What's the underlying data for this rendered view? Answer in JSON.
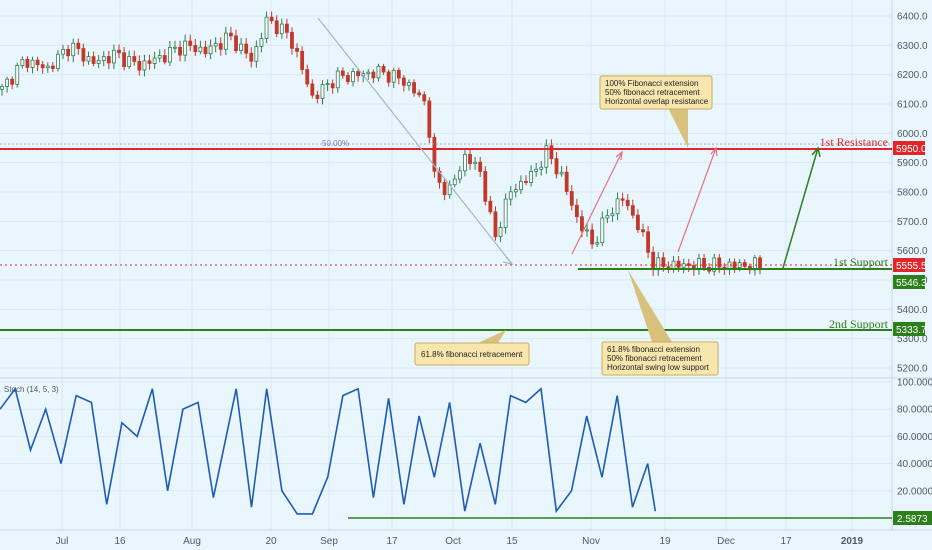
{
  "chart_data": {
    "type": "candlestick",
    "price_axis": {
      "ticks": [
        6400,
        6300,
        6200,
        6100,
        6000,
        5900,
        5800,
        5700,
        5600,
        5500,
        5400,
        5300,
        5200
      ]
    },
    "time_axis": {
      "labels": [
        "Jul",
        "16",
        "Aug",
        "20",
        "Sep",
        "17",
        "Oct",
        "15",
        "Nov",
        "19",
        "Dec",
        "17",
        "2019"
      ]
    },
    "price_path": [
      [
        0,
        6150
      ],
      [
        0.03,
        6250
      ],
      [
        0.06,
        6220
      ],
      [
        0.09,
        6300
      ],
      [
        0.12,
        6240
      ],
      [
        0.15,
        6270
      ],
      [
        0.18,
        6230
      ],
      [
        0.21,
        6260
      ],
      [
        0.24,
        6300
      ],
      [
        0.27,
        6280
      ],
      [
        0.3,
        6330
      ],
      [
        0.33,
        6250
      ],
      [
        0.35,
        6390
      ],
      [
        0.38,
        6330
      ],
      [
        0.41,
        6120
      ],
      [
        0.44,
        6190
      ],
      [
        0.47,
        6200
      ],
      [
        0.5,
        6210
      ],
      [
        0.53,
        6180
      ],
      [
        0.56,
        6100
      ],
      [
        0.57,
        5850
      ],
      [
        0.59,
        5800
      ],
      [
        0.61,
        5920
      ],
      [
        0.63,
        5880
      ],
      [
        0.65,
        5640
      ],
      [
        0.67,
        5800
      ],
      [
        0.7,
        5860
      ],
      [
        0.72,
        5940
      ],
      [
        0.74,
        5840
      ],
      [
        0.76,
        5700
      ],
      [
        0.78,
        5620
      ],
      [
        0.8,
        5730
      ],
      [
        0.82,
        5780
      ],
      [
        0.84,
        5680
      ],
      [
        0.86,
        5550
      ]
    ],
    "overlap_ranges": [
      [
        0.015,
        0.16
      ],
      [
        0.53,
        0.63
      ]
    ],
    "lines": [
      {
        "label": "1st Resistance",
        "value": "5950.0",
        "price": 5950,
        "color": "#e0262b"
      },
      {
        "label": "1st Support",
        "value": "5546.3",
        "price": 5546.3,
        "color": "#2c7f1a"
      },
      {
        "label": "2nd Support",
        "value": "5333.7",
        "price": 5333.7,
        "color": "#2c7f1a"
      }
    ],
    "current_price": {
      "value": "5555.5",
      "price": 5555.5,
      "color": "#e0262b"
    },
    "fib_level": {
      "label": "50.00%",
      "price": 5965
    },
    "annotations": [
      {
        "lines": [
          "100% Fibonacci extension",
          "50% fibonacci retracement",
          "Horizontal overlap resistance"
        ]
      },
      {
        "lines": [
          "61.8% fibonacci retracement"
        ]
      },
      {
        "lines": [
          "61.8% fibonacci extension",
          "50% fibonacci retracement",
          "Horizontal swing low support"
        ]
      }
    ],
    "oscillator": {
      "label": "Stoch (14, 5, 3)",
      "ticks": [
        "100.0000",
        "80.0000",
        "60.0000",
        "40.0000",
        "20.0000"
      ],
      "tick_values": [
        100,
        80,
        60,
        40,
        20
      ],
      "value": "2.5873",
      "value_num": 2.5873,
      "path": [
        [
          0,
          80
        ],
        [
          0.02,
          95
        ],
        [
          0.04,
          50
        ],
        [
          0.06,
          80
        ],
        [
          0.08,
          40
        ],
        [
          0.1,
          90
        ],
        [
          0.12,
          85
        ],
        [
          0.14,
          10
        ],
        [
          0.16,
          70
        ],
        [
          0.18,
          60
        ],
        [
          0.2,
          95
        ],
        [
          0.22,
          20
        ],
        [
          0.24,
          80
        ],
        [
          0.26,
          85
        ],
        [
          0.28,
          15
        ],
        [
          0.31,
          95
        ],
        [
          0.33,
          8
        ],
        [
          0.35,
          95
        ],
        [
          0.37,
          20
        ],
        [
          0.39,
          3
        ],
        [
          0.41,
          3
        ],
        [
          0.43,
          30
        ],
        [
          0.45,
          90
        ],
        [
          0.47,
          95
        ],
        [
          0.49,
          15
        ],
        [
          0.51,
          88
        ],
        [
          0.53,
          10
        ],
        [
          0.55,
          75
        ],
        [
          0.57,
          30
        ],
        [
          0.59,
          85
        ],
        [
          0.61,
          5
        ],
        [
          0.63,
          55
        ],
        [
          0.65,
          10
        ],
        [
          0.67,
          90
        ],
        [
          0.69,
          85
        ],
        [
          0.71,
          95
        ],
        [
          0.73,
          5
        ],
        [
          0.75,
          20
        ],
        [
          0.77,
          75
        ],
        [
          0.79,
          30
        ],
        [
          0.81,
          90
        ],
        [
          0.83,
          8
        ],
        [
          0.85,
          40
        ],
        [
          0.86,
          5
        ]
      ]
    }
  }
}
